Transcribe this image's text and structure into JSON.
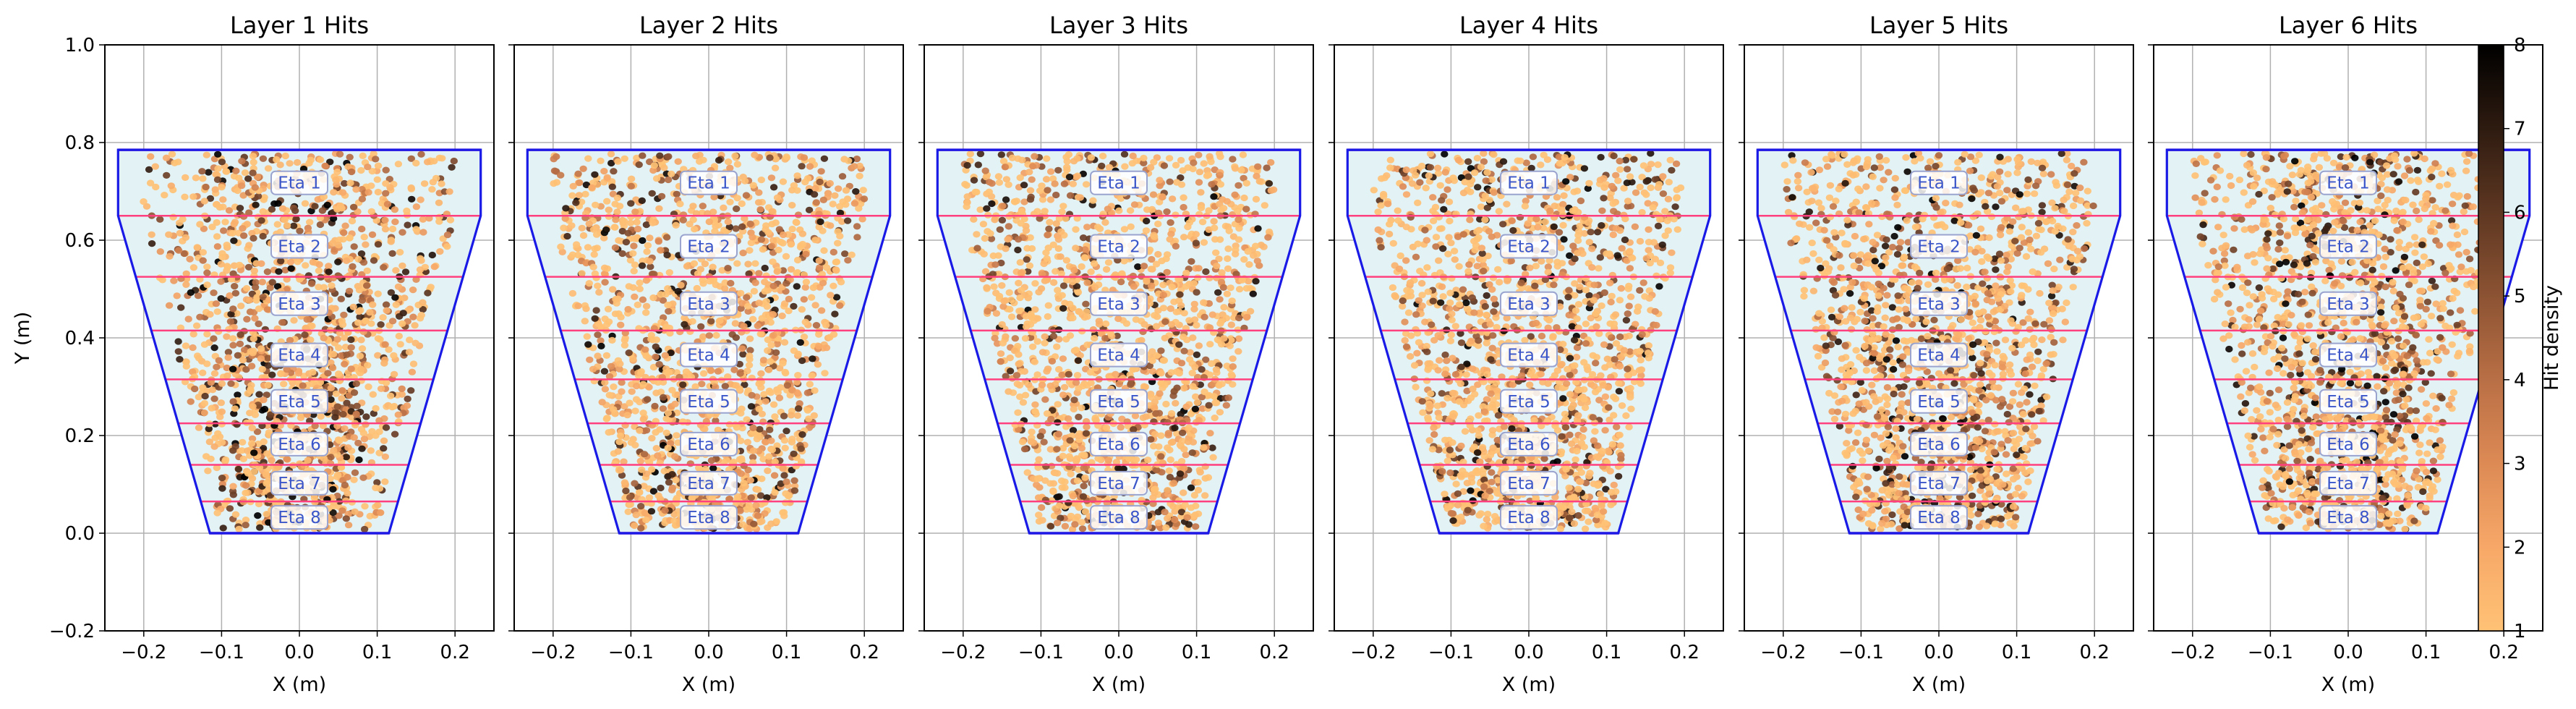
{
  "chart_data": [
    {
      "type": "heatmap",
      "title": "Layer 1 Hits",
      "xlabel": "X (m)",
      "ylabel": "Y (m)",
      "xlim": [
        -0.25,
        0.25
      ],
      "ylim": [
        -0.2,
        1.0
      ],
      "xticks": [
        "−0.2",
        "−0.1",
        "0.0",
        "0.1",
        "0.2"
      ],
      "yticks": [
        "−0.2",
        "0.0",
        "0.2",
        "0.4",
        "0.6",
        "0.8",
        "1.0"
      ],
      "grid": true,
      "seed": 11,
      "density_bias": 0.35
    },
    {
      "type": "heatmap",
      "title": "Layer 2 Hits",
      "xlabel": "X (m)",
      "ylabel": "",
      "xlim": [
        -0.25,
        0.25
      ],
      "ylim": [
        -0.2,
        1.0
      ],
      "xticks": [
        "−0.2",
        "−0.1",
        "0.0",
        "0.1",
        "0.2"
      ],
      "yticks": [],
      "grid": true,
      "seed": 23,
      "density_bias": 0.12
    },
    {
      "type": "heatmap",
      "title": "Layer 3 Hits",
      "xlabel": "X (m)",
      "ylabel": "",
      "xlim": [
        -0.25,
        0.25
      ],
      "ylim": [
        -0.2,
        1.0
      ],
      "xticks": [
        "−0.2",
        "−0.1",
        "0.0",
        "0.1",
        "0.2"
      ],
      "yticks": [],
      "grid": true,
      "seed": 37,
      "density_bias": 0.08
    },
    {
      "type": "heatmap",
      "title": "Layer 4 Hits",
      "xlabel": "X (m)",
      "ylabel": "",
      "xlim": [
        -0.25,
        0.25
      ],
      "ylim": [
        -0.2,
        1.0
      ],
      "xticks": [
        "−0.2",
        "−0.1",
        "0.0",
        "0.1",
        "0.2"
      ],
      "yticks": [],
      "grid": true,
      "seed": 41,
      "density_bias": 0.18
    },
    {
      "type": "heatmap",
      "title": "Layer 5 Hits",
      "xlabel": "X (m)",
      "ylabel": "",
      "xlim": [
        -0.25,
        0.25
      ],
      "ylim": [
        -0.2,
        1.0
      ],
      "xticks": [
        "−0.2",
        "−0.1",
        "0.0",
        "0.1",
        "0.2"
      ],
      "yticks": [],
      "grid": true,
      "seed": 53,
      "density_bias": 0.2
    },
    {
      "type": "heatmap",
      "title": "Layer 6 Hits",
      "xlabel": "X (m)",
      "ylabel": "",
      "xlim": [
        -0.25,
        0.25
      ],
      "ylim": [
        -0.2,
        1.0
      ],
      "xticks": [
        "−0.2",
        "−0.1",
        "0.0",
        "0.1",
        "0.2"
      ],
      "yticks": [],
      "grid": true,
      "seed": 67,
      "density_bias": 0.3
    }
  ],
  "chamber": {
    "outline": [
      [
        -0.115,
        0.0
      ],
      [
        0.115,
        0.0
      ],
      [
        0.233,
        0.65
      ],
      [
        0.233,
        0.785
      ],
      [
        -0.233,
        0.785
      ],
      [
        -0.233,
        0.65
      ]
    ],
    "eta_boundaries": [
      0.0,
      0.065,
      0.14,
      0.225,
      0.315,
      0.415,
      0.525,
      0.65,
      0.785
    ],
    "eta_labels": [
      "Eta 1",
      "Eta 2",
      "Eta 3",
      "Eta 4",
      "Eta 5",
      "Eta 6",
      "Eta 7",
      "Eta 8"
    ],
    "colors": {
      "outline": "#1a1ae6",
      "fill": "#e2f2f5",
      "eta_line": "#ff3f7e",
      "top_bottom": "#9a20c8",
      "label_text": "#3b56c8",
      "label_box": "#9aa4cf"
    }
  },
  "colorbar": {
    "label": "Hit density",
    "min": 1,
    "max": 8,
    "ticks": [
      "1",
      "2",
      "3",
      "4",
      "5",
      "6",
      "7",
      "8"
    ],
    "colormap": "copper_r",
    "colors": [
      "#ffc275",
      "#f7a868",
      "#dd8a55",
      "#b96f45",
      "#8c5333",
      "#5e3722",
      "#2e1b10",
      "#000000"
    ]
  }
}
